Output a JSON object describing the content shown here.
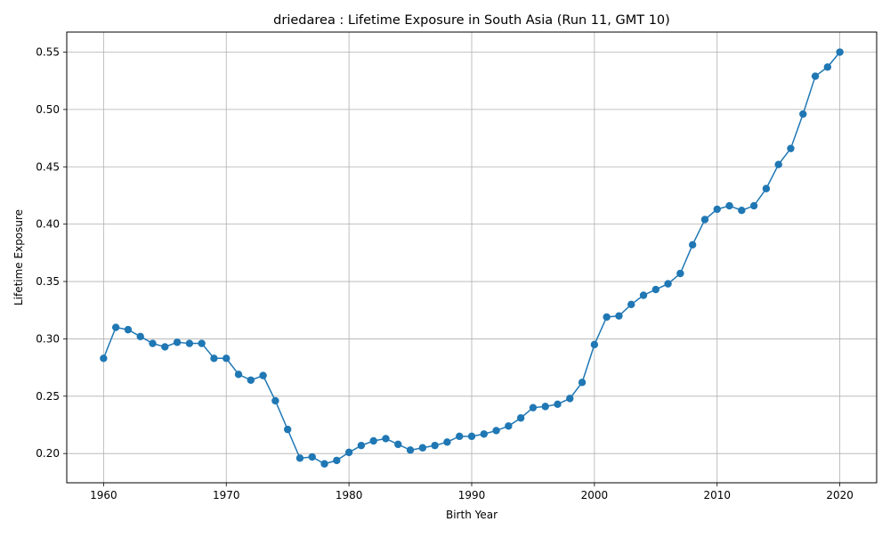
{
  "chart_data": {
    "type": "line",
    "title": "driedarea : Lifetime Exposure in South Asia (Run 11, GMT 10)",
    "xlabel": "Birth Year",
    "ylabel": "Lifetime Exposure",
    "xlim": [
      1957,
      2023
    ],
    "ylim": [
      0.1745,
      0.5675
    ],
    "xticks": [
      1960,
      1970,
      1980,
      1990,
      2000,
      2010,
      2020
    ],
    "yticks": [
      0.2,
      0.25,
      0.3,
      0.35,
      0.4,
      0.45,
      0.5,
      0.55
    ],
    "ytick_labels": [
      "0.20",
      "0.25",
      "0.30",
      "0.35",
      "0.40",
      "0.45",
      "0.50",
      "0.55"
    ],
    "grid": true,
    "line_color": "#1f77b4",
    "marker": "circle",
    "x": [
      1960,
      1961,
      1962,
      1963,
      1964,
      1965,
      1966,
      1967,
      1968,
      1969,
      1970,
      1971,
      1972,
      1973,
      1974,
      1975,
      1976,
      1977,
      1978,
      1979,
      1980,
      1981,
      1982,
      1983,
      1984,
      1985,
      1986,
      1987,
      1988,
      1989,
      1990,
      1991,
      1992,
      1993,
      1994,
      1995,
      1996,
      1997,
      1998,
      1999,
      2000,
      2001,
      2002,
      2003,
      2004,
      2005,
      2006,
      2007,
      2008,
      2009,
      2010,
      2011,
      2012,
      2013,
      2014,
      2015,
      2016,
      2017,
      2018,
      2019,
      2020
    ],
    "y": [
      0.283,
      0.31,
      0.308,
      0.302,
      0.296,
      0.293,
      0.297,
      0.296,
      0.296,
      0.283,
      0.283,
      0.269,
      0.264,
      0.268,
      0.246,
      0.221,
      0.196,
      0.197,
      0.191,
      0.194,
      0.201,
      0.207,
      0.211,
      0.213,
      0.208,
      0.203,
      0.205,
      0.207,
      0.21,
      0.215,
      0.215,
      0.217,
      0.22,
      0.224,
      0.231,
      0.24,
      0.241,
      0.243,
      0.248,
      0.262,
      0.295,
      0.319,
      0.32,
      0.33,
      0.338,
      0.343,
      0.348,
      0.357,
      0.382,
      0.404,
      0.413,
      0.416,
      0.412,
      0.416,
      0.431,
      0.452,
      0.466,
      0.496,
      0.529,
      0.537,
      0.55
    ]
  }
}
